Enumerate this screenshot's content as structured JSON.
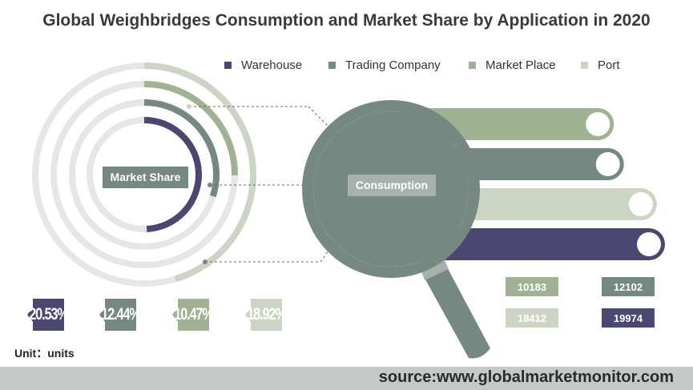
{
  "title": "Global Weighbridges Consumption and Market Share by Application in 2020",
  "colors": {
    "warehouse": "#4a4870",
    "trading_company": "#758882",
    "market_place": "#9fb392",
    "port": "#ccd5c3",
    "ring_bg": "#e6e6e6"
  },
  "labels": {
    "market_share": "Market Share",
    "consumption": "Consumption"
  },
  "unit": "Unit：units",
  "source": "source:www.globalmarketmonitor.com",
  "chart_data": {
    "type": "bar",
    "categories": [
      "Warehouse",
      "Trading Company",
      "Market Place",
      "Port"
    ],
    "series": [
      {
        "name": "Market Share",
        "values": [
          20.53,
          12.44,
          10.47,
          18.92
        ],
        "labels": [
          "20.53%",
          "12.44%",
          "10.47%",
          "18.92%"
        ]
      },
      {
        "name": "Consumption",
        "values": [
          19974,
          12102,
          10183,
          18412
        ],
        "labels": [
          "19974",
          "12102",
          "10183",
          "18412"
        ]
      }
    ]
  }
}
